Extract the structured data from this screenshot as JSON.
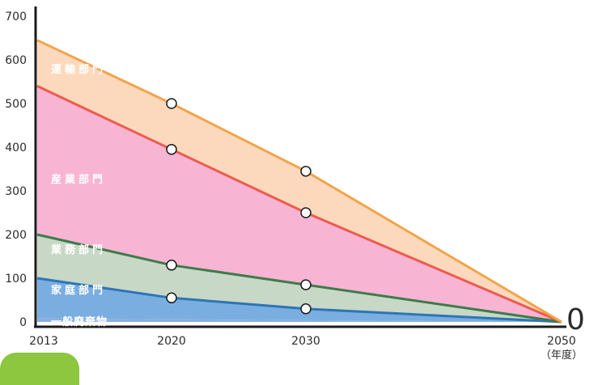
{
  "chart_data": {
    "type": "area",
    "x": [
      2013,
      2020,
      2030,
      2050
    ],
    "x_tick_labels": [
      "2013",
      "2020",
      "2030",
      "2050"
    ],
    "x_unit": "（年度）",
    "ylim": [
      0,
      700
    ],
    "y_ticks": [
      0,
      100,
      200,
      300,
      400,
      500,
      600,
      700
    ],
    "y_zero_annotation": "0",
    "stacked": true,
    "series": [
      {
        "name": "一般廃棄物",
        "cumulative": [
          8,
          6,
          4,
          0
        ],
        "fill": "#8aaee0",
        "line": "#2f6fb5",
        "label_bg": "#7d7fc4"
      },
      {
        "name": "家庭部門",
        "cumulative": [
          100,
          55,
          30,
          0
        ],
        "fill": "#7aaee0",
        "line": "#2e75b6",
        "label_bg": "#4fc3e8"
      },
      {
        "name": "業務部門",
        "cumulative": [
          200,
          130,
          85,
          0
        ],
        "fill": "#c8d8c6",
        "line": "#3e7b4a",
        "label_bg": "#7dc142"
      },
      {
        "name": "産業部門",
        "cumulative": [
          540,
          395,
          250,
          0
        ],
        "fill": "#f7b4d3",
        "line": "#ee5a4e",
        "label_bg": "#e8307a"
      },
      {
        "name": "運輸部門",
        "cumulative": [
          645,
          500,
          345,
          0
        ],
        "fill": "#fcd9bd",
        "line": "#f2a44a",
        "label_bg": "#f6b265"
      }
    ],
    "markers": [
      {
        "x": 2020,
        "y": 55
      },
      {
        "x": 2030,
        "y": 30
      },
      {
        "x": 2020,
        "y": 130
      },
      {
        "x": 2030,
        "y": 85
      },
      {
        "x": 2020,
        "y": 395
      },
      {
        "x": 2030,
        "y": 250
      },
      {
        "x": 2020,
        "y": 500
      },
      {
        "x": 2030,
        "y": 345
      }
    ]
  }
}
